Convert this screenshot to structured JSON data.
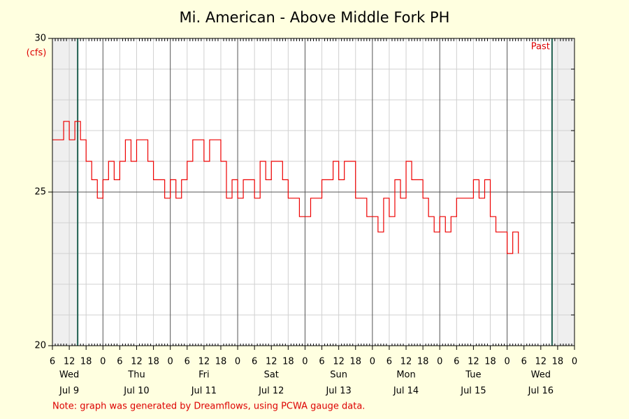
{
  "chart_data": {
    "type": "line",
    "title": "Mi. American - Above Middle Fork PH",
    "y_label": "(cfs)",
    "note": "Note: graph was generated by Dreamflows, using PCWA gauge data.",
    "step": true,
    "grid": true,
    "series": [
      {
        "name": "Mi. American - Above Middle Fork PH",
        "color": "#ee0000",
        "x": [
          "Jul 9 06:00",
          "Jul 9 08:00",
          "Jul 9 10:00",
          "Jul 9 12:00",
          "Jul 9 14:00",
          "Jul 9 16:00",
          "Jul 9 18:00",
          "Jul 9 20:00",
          "Jul 9 22:00",
          "Jul 10 00:00",
          "Jul 10 02:00",
          "Jul 10 04:00",
          "Jul 10 06:00",
          "Jul 10 08:00",
          "Jul 10 10:00",
          "Jul 10 12:00",
          "Jul 10 14:00",
          "Jul 10 16:00",
          "Jul 10 18:00",
          "Jul 10 20:00",
          "Jul 10 22:00",
          "Jul 11 00:00",
          "Jul 11 02:00",
          "Jul 11 04:00",
          "Jul 11 06:00",
          "Jul 11 08:00",
          "Jul 11 10:00",
          "Jul 11 12:00",
          "Jul 11 14:00",
          "Jul 11 16:00",
          "Jul 11 18:00",
          "Jul 11 20:00",
          "Jul 11 22:00",
          "Jul 12 00:00",
          "Jul 12 02:00",
          "Jul 12 04:00",
          "Jul 12 06:00",
          "Jul 12 08:00",
          "Jul 12 10:00",
          "Jul 12 12:00",
          "Jul 12 14:00",
          "Jul 12 16:00",
          "Jul 12 18:00",
          "Jul 12 20:00",
          "Jul 12 22:00",
          "Jul 13 00:00",
          "Jul 13 02:00",
          "Jul 13 04:00",
          "Jul 13 06:00",
          "Jul 13 08:00",
          "Jul 13 10:00",
          "Jul 13 12:00",
          "Jul 13 14:00",
          "Jul 13 16:00",
          "Jul 13 18:00",
          "Jul 13 20:00",
          "Jul 13 22:00",
          "Jul 14 00:00",
          "Jul 14 02:00",
          "Jul 14 04:00",
          "Jul 14 06:00",
          "Jul 14 08:00",
          "Jul 14 10:00",
          "Jul 14 12:00",
          "Jul 14 14:00",
          "Jul 14 16:00",
          "Jul 14 18:00",
          "Jul 14 20:00",
          "Jul 14 22:00",
          "Jul 15 00:00",
          "Jul 15 02:00",
          "Jul 15 04:00",
          "Jul 15 06:00",
          "Jul 15 08:00",
          "Jul 15 10:00",
          "Jul 15 12:00",
          "Jul 15 14:00",
          "Jul 15 16:00",
          "Jul 15 18:00",
          "Jul 15 20:00",
          "Jul 15 22:00",
          "Jul 16 00:00",
          "Jul 16 02:00",
          "Jul 16 04:00"
        ],
        "values": [
          26.7,
          26.7,
          27.3,
          26.7,
          27.3,
          26.7,
          26.0,
          25.4,
          24.8,
          25.4,
          26.0,
          25.4,
          26.0,
          26.7,
          26.0,
          26.7,
          26.7,
          26.0,
          25.4,
          25.4,
          24.8,
          25.4,
          24.8,
          25.4,
          26.0,
          26.7,
          26.7,
          26.0,
          26.7,
          26.7,
          26.0,
          24.8,
          25.4,
          24.8,
          25.4,
          25.4,
          24.8,
          26.0,
          25.4,
          26.0,
          26.0,
          25.4,
          24.8,
          24.8,
          24.2,
          24.2,
          24.8,
          24.8,
          25.4,
          25.4,
          26.0,
          25.4,
          26.0,
          26.0,
          24.8,
          24.8,
          24.2,
          24.2,
          23.7,
          24.8,
          24.2,
          25.4,
          24.8,
          26.0,
          25.4,
          25.4,
          24.8,
          24.2,
          23.7,
          24.2,
          23.7,
          24.2,
          24.8,
          24.8,
          24.8,
          25.4,
          24.8,
          25.4,
          24.2,
          23.7,
          23.7,
          23.0,
          23.7,
          23.0
        ]
      }
    ],
    "xlim": [
      "Jul 9 06:00",
      "Jul 17 00:00"
    ],
    "ylim": [
      20,
      30
    ],
    "yticks": [
      20,
      25,
      30
    ],
    "ygrid_minor": [
      21,
      22,
      23,
      24,
      26,
      27,
      28,
      29
    ],
    "xticks": [
      {
        "value": "Jul 9 06:00",
        "label": "6"
      },
      {
        "value": "Jul 9 12:00",
        "label": "12"
      },
      {
        "value": "Jul 9 18:00",
        "label": "18"
      },
      {
        "value": "Jul 10 00:00",
        "label": "0"
      },
      {
        "value": "Jul 10 06:00",
        "label": "6"
      },
      {
        "value": "Jul 10 12:00",
        "label": "12"
      },
      {
        "value": "Jul 10 18:00",
        "label": "18"
      },
      {
        "value": "Jul 11 00:00",
        "label": "0"
      },
      {
        "value": "Jul 11 06:00",
        "label": "6"
      },
      {
        "value": "Jul 11 12:00",
        "label": "12"
      },
      {
        "value": "Jul 11 18:00",
        "label": "18"
      },
      {
        "value": "Jul 12 00:00",
        "label": "0"
      },
      {
        "value": "Jul 12 06:00",
        "label": "6"
      },
      {
        "value": "Jul 12 12:00",
        "label": "12"
      },
      {
        "value": "Jul 12 18:00",
        "label": "18"
      },
      {
        "value": "Jul 13 00:00",
        "label": "0"
      },
      {
        "value": "Jul 13 06:00",
        "label": "6"
      },
      {
        "value": "Jul 13 12:00",
        "label": "12"
      },
      {
        "value": "Jul 13 18:00",
        "label": "18"
      },
      {
        "value": "Jul 14 00:00",
        "label": "0"
      },
      {
        "value": "Jul 14 06:00",
        "label": "6"
      },
      {
        "value": "Jul 14 12:00",
        "label": "12"
      },
      {
        "value": "Jul 14 18:00",
        "label": "18"
      },
      {
        "value": "Jul 15 00:00",
        "label": "0"
      },
      {
        "value": "Jul 15 06:00",
        "label": "6"
      },
      {
        "value": "Jul 15 12:00",
        "label": "12"
      },
      {
        "value": "Jul 15 18:00",
        "label": "18"
      },
      {
        "value": "Jul 16 00:00",
        "label": "0"
      },
      {
        "value": "Jul 16 06:00",
        "label": "6"
      },
      {
        "value": "Jul 16 12:00",
        "label": "12"
      },
      {
        "value": "Jul 16 18:00",
        "label": "18"
      },
      {
        "value": "Jul 17 00:00",
        "label": "0"
      }
    ],
    "day_labels": [
      {
        "value": "Jul 9 12:00",
        "weekday": "Wed",
        "date": "Jul 9"
      },
      {
        "value": "Jul 10 12:00",
        "weekday": "Thu",
        "date": "Jul 10"
      },
      {
        "value": "Jul 11 12:00",
        "weekday": "Fri",
        "date": "Jul 11"
      },
      {
        "value": "Jul 12 12:00",
        "weekday": "Sat",
        "date": "Jul 12"
      },
      {
        "value": "Jul 13 12:00",
        "weekday": "Sun",
        "date": "Jul 13"
      },
      {
        "value": "Jul 14 12:00",
        "weekday": "Mon",
        "date": "Jul 14"
      },
      {
        "value": "Jul 15 12:00",
        "weekday": "Tue",
        "date": "Jul 15"
      },
      {
        "value": "Jul 16 12:00",
        "weekday": "Wed",
        "date": "Jul 16"
      }
    ],
    "shade_before": "Jul 9 15:00",
    "shade_after": {
      "value": "Jul 16 16:00",
      "label": "Past"
    }
  }
}
